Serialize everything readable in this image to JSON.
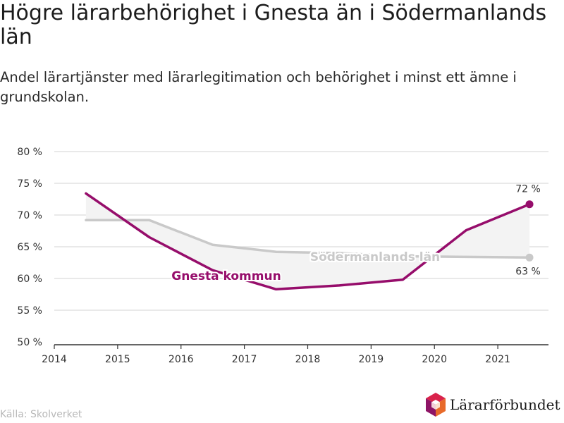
{
  "chart_data": {
    "type": "line",
    "title": "Högre lärarbehörighet i Gnesta än i Södermanlands län",
    "subtitle": "Andel lärartjänster med lärarlegitimation och behörighet i minst ett ämne i grundskolan.",
    "xlim": [
      2014,
      2021.8
    ],
    "ylim": [
      50,
      80
    ],
    "x_ticks": [
      "2014",
      "2015",
      "2016",
      "2017",
      "2018",
      "2019",
      "2020",
      "2021"
    ],
    "y_ticks": [
      "80 %",
      "75 %",
      "70 %",
      "65 %",
      "60 %",
      "55 %",
      "50 %"
    ],
    "grid": true,
    "series": [
      {
        "name": "Södermanlands län",
        "color": "#c9c9c9",
        "x": [
          2014.5,
          2015.5,
          2016.5,
          2017.5,
          2018.5,
          2019.5,
          2020.5,
          2021.5
        ],
        "values": [
          69.2,
          69.2,
          65.3,
          64.2,
          64.0,
          63.5,
          63.4,
          63.3
        ],
        "end_label": "63 %"
      },
      {
        "name": "Gnesta kommun",
        "color": "#960d6b",
        "x": [
          2014.5,
          2015.5,
          2016.5,
          2017.5,
          2018.5,
          2019.5,
          2020.5,
          2021.5
        ],
        "values": [
          73.4,
          66.5,
          61.3,
          58.3,
          58.9,
          59.8,
          67.6,
          71.7
        ],
        "end_label": "72 %"
      }
    ]
  },
  "footer": {
    "source": "Källa: Skolverket",
    "logo_text": "Lärarförbundet",
    "logo_icon": "hexagon-cube-icon"
  }
}
